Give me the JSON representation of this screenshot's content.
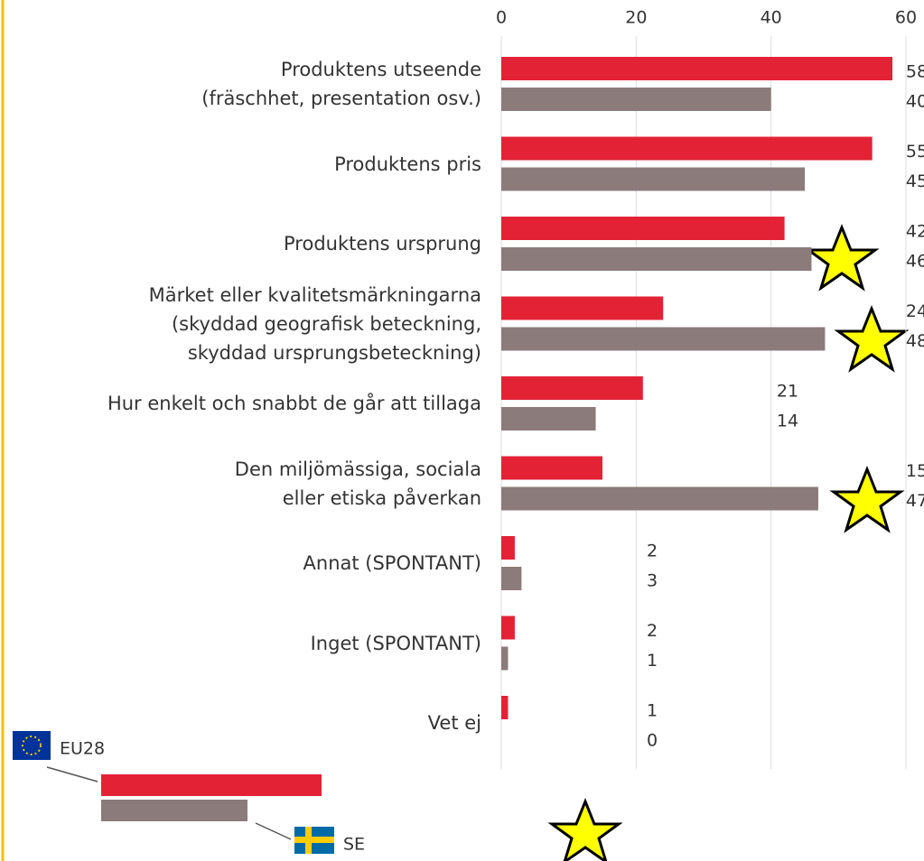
{
  "chart_data": {
    "type": "bar",
    "orientation": "horizontal",
    "categories": [
      "Produktens utseende\n(fräschhet, presentation osv.)",
      "Produktens pris",
      "Produktens ursprung",
      "Märket eller kvalitetsmärkningarna\n(skyddad geografisk beteckning,\nskyddad ursprungsbeteckning)",
      "Hur enkelt och snabbt de går att tillaga",
      "Den miljömässiga, sociala\neller etiska påverkan",
      "Annat (SPONTANT)",
      "Inget (SPONTANT)",
      "Vet ej"
    ],
    "series": [
      {
        "name": "EU28",
        "color": "#e32236",
        "values": [
          58,
          55,
          42,
          24,
          21,
          15,
          2,
          2,
          1
        ]
      },
      {
        "name": "SE",
        "color": "#8c7b7b",
        "values": [
          40,
          45,
          46,
          48,
          14,
          47,
          3,
          1,
          0
        ]
      }
    ],
    "xlim": [
      0,
      60
    ],
    "xticks": [
      0,
      20,
      40,
      60
    ],
    "grid": true
  }
}
